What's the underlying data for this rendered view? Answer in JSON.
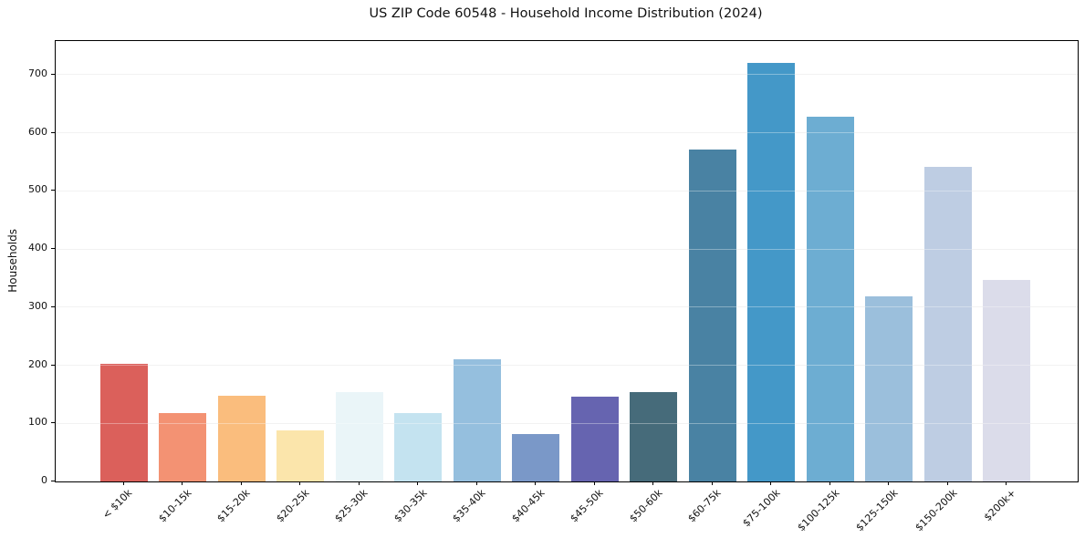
{
  "figure": {
    "title": "US ZIP Code 60548 - Household Income Distribution (2024)"
  },
  "chart_data": {
    "type": "bar",
    "title": "US ZIP Code 60548 - Household Income Distribution (2024)",
    "xlabel": "",
    "ylabel": "Households",
    "categories": [
      "< $10k",
      "$10-15k",
      "$15-20k",
      "$20-25k",
      "$25-30k",
      "$30-35k",
      "$35-40k",
      "$40-45k",
      "$45-50k",
      "$50-60k",
      "$60-75k",
      "$75-100k",
      "$100-125k",
      "$125-150k",
      "$150-200k",
      "$200k+"
    ],
    "values": [
      202,
      117,
      147,
      88,
      154,
      118,
      211,
      82,
      146,
      154,
      572,
      720,
      628,
      318,
      542,
      347
    ],
    "bar_colors": [
      "#d8544f",
      "#f28a68",
      "#fab873",
      "#fbe3a5",
      "#e8f4f7",
      "#bfe1ef",
      "#8dbadb",
      "#7090c4",
      "#5a58aa",
      "#386070",
      "#3b799c",
      "#3690c4",
      "#62a7cf",
      "#93bad9",
      "#b9c9e1",
      "#d8d9e8"
    ],
    "yticks": [
      0,
      100,
      200,
      300,
      400,
      500,
      600,
      700
    ],
    "ylim": [
      0,
      758
    ],
    "grid": "horizontal-light",
    "legend": "none",
    "x_tick_rotation_deg": 45
  }
}
